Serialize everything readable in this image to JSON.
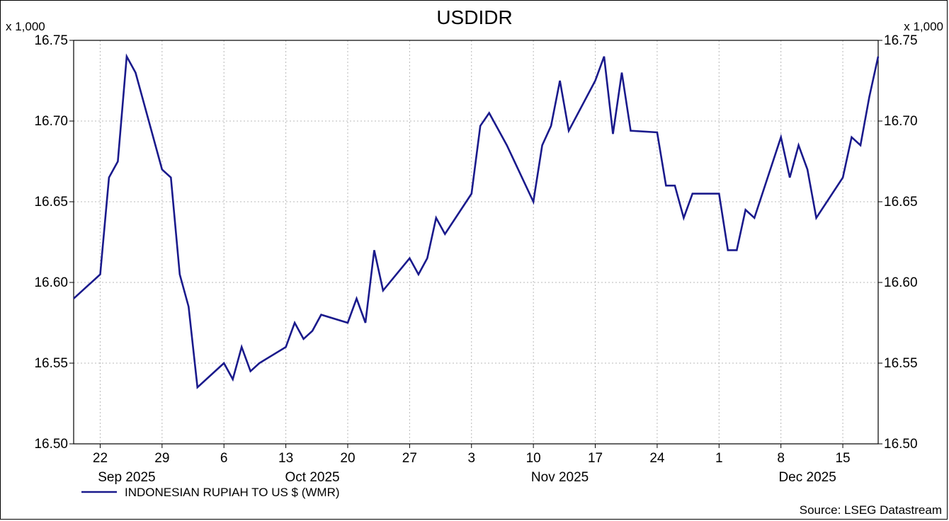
{
  "chart_data": {
    "type": "line",
    "title": "USDIDR",
    "y_multiplier_label": "x 1,000",
    "ylim": [
      16.5,
      16.75
    ],
    "y_ticks": [
      "16.50",
      "16.55",
      "16.60",
      "16.65",
      "16.70",
      "16.75"
    ],
    "x_ticks": [
      "22",
      "29",
      "6",
      "13",
      "20",
      "27",
      "3",
      "10",
      "17",
      "24",
      "1",
      "8",
      "15"
    ],
    "x_tick_dates": [
      "2025-09-22",
      "2025-09-29",
      "2025-10-06",
      "2025-10-13",
      "2025-10-20",
      "2025-10-27",
      "2025-11-03",
      "2025-11-10",
      "2025-11-17",
      "2025-11-24",
      "2025-12-01",
      "2025-12-08",
      "2025-12-15"
    ],
    "month_labels": [
      {
        "label": "Sep 2025",
        "date": "2025-09-25"
      },
      {
        "label": "Oct 2025",
        "date": "2025-10-16"
      },
      {
        "label": "Nov 2025",
        "date": "2025-11-13"
      },
      {
        "label": "Dec 2025",
        "date": "2025-12-11"
      }
    ],
    "legend_position": "bottom-left",
    "grid": true,
    "source": "Source: LSEG Datastream",
    "series": [
      {
        "name": "INDONESIAN RUPIAH TO US $ (WMR)",
        "color": "#1a1a8c",
        "x": [
          "2025-09-19",
          "2025-09-22",
          "2025-09-23",
          "2025-09-24",
          "2025-09-25",
          "2025-09-26",
          "2025-09-29",
          "2025-09-30",
          "2025-10-01",
          "2025-10-02",
          "2025-10-03",
          "2025-10-06",
          "2025-10-07",
          "2025-10-08",
          "2025-10-09",
          "2025-10-10",
          "2025-10-13",
          "2025-10-14",
          "2025-10-15",
          "2025-10-16",
          "2025-10-17",
          "2025-10-20",
          "2025-10-21",
          "2025-10-22",
          "2025-10-23",
          "2025-10-24",
          "2025-10-27",
          "2025-10-28",
          "2025-10-29",
          "2025-10-30",
          "2025-10-31",
          "2025-11-03",
          "2025-11-04",
          "2025-11-05",
          "2025-11-06",
          "2025-11-07",
          "2025-11-10",
          "2025-11-11",
          "2025-11-12",
          "2025-11-13",
          "2025-11-14",
          "2025-11-17",
          "2025-11-18",
          "2025-11-19",
          "2025-11-20",
          "2025-11-21",
          "2025-11-24",
          "2025-11-25",
          "2025-11-26",
          "2025-11-27",
          "2025-11-28",
          "2025-12-01",
          "2025-12-02",
          "2025-12-03",
          "2025-12-04",
          "2025-12-05",
          "2025-12-08",
          "2025-12-09",
          "2025-12-10",
          "2025-12-11",
          "2025-12-12",
          "2025-12-15",
          "2025-12-16",
          "2025-12-17",
          "2025-12-18",
          "2025-12-19"
        ],
        "values": [
          16.59,
          16.605,
          16.665,
          16.675,
          16.74,
          16.73,
          16.67,
          16.665,
          16.605,
          16.585,
          16.535,
          16.55,
          16.54,
          16.56,
          16.545,
          16.55,
          16.56,
          16.575,
          16.565,
          16.57,
          16.58,
          16.575,
          16.59,
          16.575,
          16.62,
          16.595,
          16.615,
          16.605,
          16.615,
          16.64,
          16.63,
          16.655,
          16.697,
          16.705,
          16.695,
          16.685,
          16.65,
          16.685,
          16.697,
          16.725,
          16.694,
          16.725,
          16.74,
          16.692,
          16.73,
          16.694,
          16.693,
          16.66,
          16.66,
          16.64,
          16.655,
          16.655,
          16.62,
          16.62,
          16.645,
          16.64,
          16.69,
          16.665,
          16.685,
          16.67,
          16.64,
          16.665,
          16.69,
          16.685,
          16.715,
          16.74
        ]
      }
    ]
  }
}
